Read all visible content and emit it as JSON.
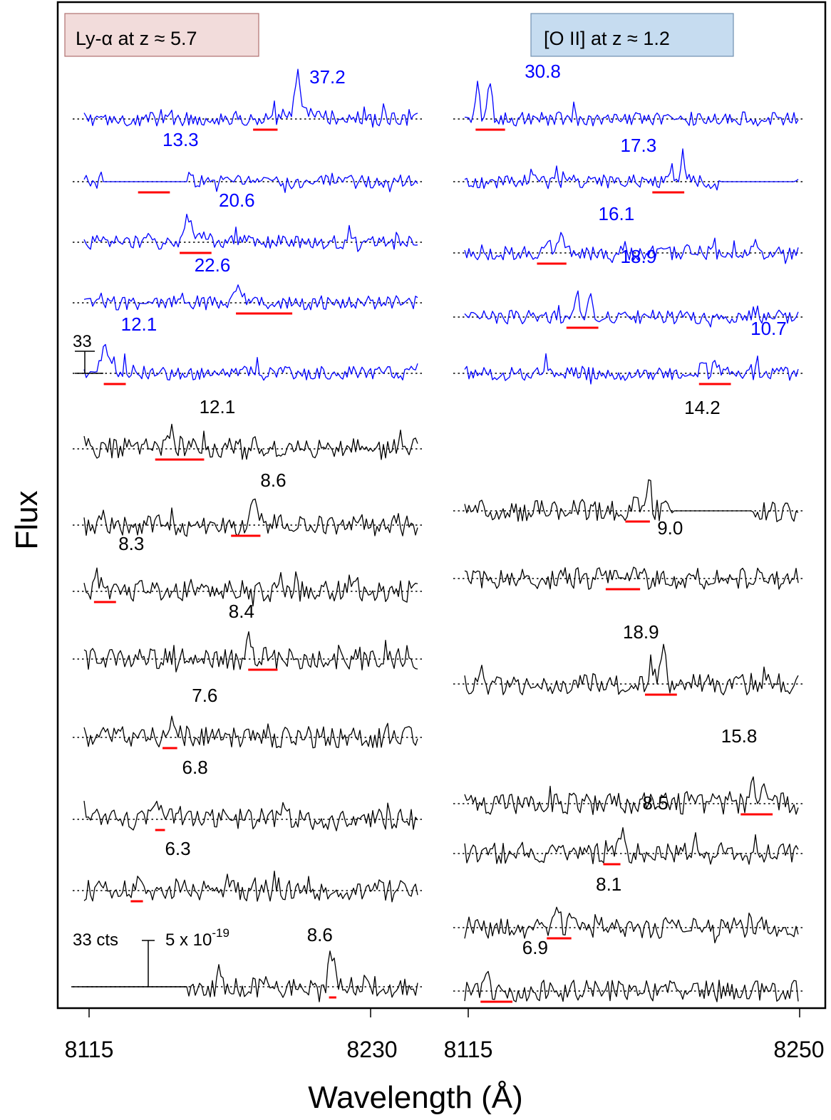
{
  "figure": {
    "ylabel": "Flux",
    "xlabel": "Wavelength (Å)",
    "colors": {
      "bright": "#0000ff",
      "faint": "#000000",
      "line_window": "#ff0000",
      "box_lya": "#f2dcdb",
      "box_oii": "#c6dcf0"
    }
  },
  "chart_data": [
    {
      "type": "line",
      "panel": "left",
      "title": "Ly-α  at  z ≈ 5.7",
      "x_ticks": [
        "8115",
        "8230"
      ],
      "xlim": [
        8115,
        8230
      ],
      "grid": false,
      "scale_bars": [
        {
          "label": "33",
          "series_index": 4
        },
        {
          "label_left": "33 cts",
          "label_right": "5 x 10",
          "exponent": "-19"
        }
      ],
      "series": [
        {
          "label": "37.2",
          "color": "blue",
          "line_center": 8200,
          "window": [
            8182,
            8192
          ],
          "label_at": 8205,
          "amp": 5.5,
          "label_dy": -14
        },
        {
          "label": "13.3",
          "color": "blue",
          "line_center": 8140,
          "window": [
            8135,
            8148
          ],
          "label_at": 8145,
          "amp": 3.0,
          "label_dy": -14
        },
        {
          "label": "20.6",
          "color": "blue",
          "line_center": 8155,
          "window": [
            8152,
            8165
          ],
          "label_at": 8168,
          "amp": 3.5,
          "label_dy": -14
        },
        {
          "label": "22.6",
          "color": "blue",
          "line_center": 8175,
          "window": [
            8175,
            8198
          ],
          "label_at": 8158,
          "amp": 2.0,
          "label_dy": -8
        },
        {
          "label": "12.1",
          "color": "blue",
          "line_center": 8121,
          "window": [
            8121,
            8130
          ],
          "label_at": 8128,
          "amp": 3.5,
          "label_dy": -24
        },
        {
          "label": "12.1",
          "color": "black",
          "line_center": 8148,
          "window": [
            8142,
            8162
          ],
          "label_at": 8160,
          "amp": 2.5,
          "label_dy": -14
        },
        {
          "label": "8.6",
          "color": "black",
          "line_center": 8182,
          "window": [
            8173,
            8185
          ],
          "label_at": 8185,
          "amp": 2.8,
          "label_dy": -18
        },
        {
          "label": "8.3",
          "color": "black",
          "line_center": 8118,
          "window": [
            8117,
            8126
          ],
          "label_at": 8127,
          "amp": 2.0,
          "label_dy": -22
        },
        {
          "label": "8.4",
          "color": "black",
          "line_center": 8180,
          "window": [
            8180,
            8192
          ],
          "label_at": 8172,
          "amp": 2.2,
          "label_dy": -22
        },
        {
          "label": "7.6",
          "color": "black",
          "line_center": 8148,
          "window": [
            8145,
            8151
          ],
          "label_at": 8157,
          "amp": 2.8,
          "label_dy": -14
        },
        {
          "label": "6.8",
          "color": "black",
          "line_center": 8144,
          "window": [
            8142,
            8146
          ],
          "label_at": 8153,
          "amp": 3.0,
          "label_dy": -28
        },
        {
          "label": "6.3",
          "color": "black",
          "line_center": 8135,
          "window": [
            8132,
            8137
          ],
          "label_at": 8146,
          "amp": 1.8,
          "label_dy": -14
        },
        {
          "label": "8.6",
          "color": "black",
          "line_center": 8214,
          "window": [
            8213,
            8216
          ],
          "label_at": 8204,
          "amp": 4.5,
          "label_dy": -28
        }
      ]
    },
    {
      "type": "line",
      "panel": "right",
      "title": "[O II]  at  z ≈ 1.2",
      "x_ticks": [
        "8115",
        "8250"
      ],
      "xlim": [
        8115,
        8250
      ],
      "grid": false,
      "series": [
        {
          "label": "30.8",
          "color": "blue",
          "line_center": 8121,
          "window": [
            8118,
            8130
          ],
          "label_at": 8138,
          "amp": 6.0,
          "label_dy": -22
        },
        {
          "label": "17.3",
          "color": "blue",
          "line_center": 8200,
          "window": [
            8190,
            8203
          ],
          "label_at": 8177,
          "amp": 3.5,
          "label_dy": -6
        },
        {
          "label": "16.1",
          "color": "blue",
          "line_center": 8150,
          "window": [
            8143,
            8155
          ],
          "label_at": 8168,
          "amp": 3.5,
          "label_dy": -10
        },
        {
          "label": "18.9",
          "color": "blue",
          "line_center": 8162,
          "window": [
            8155,
            8168
          ],
          "label_at": 8177,
          "amp": 4.0,
          "label_dy": -40
        },
        {
          "label": "10.7",
          "color": "blue",
          "line_center": 8213,
          "window": [
            8209,
            8222
          ],
          "label_at": 8230,
          "amp": 2.5,
          "label_dy": -18
        },
        {
          "label": "14.2",
          "color": "black",
          "line_center": 8186,
          "window": [
            8179,
            8189
          ],
          "label_at": 8203,
          "amp": 5.0,
          "label_dy": -100
        },
        {
          "label": "9.0",
          "color": "black",
          "line_center": 8180,
          "window": [
            8171,
            8185
          ],
          "label_at": 8192,
          "amp": 2.5,
          "label_dy": -26
        },
        {
          "label": "18.9",
          "color": "black",
          "line_center": 8192,
          "window": [
            8187,
            8200
          ],
          "label_at": 8178,
          "amp": 4.5,
          "label_dy": -28
        },
        {
          "label": "15.8",
          "color": "black",
          "line_center": 8233,
          "window": [
            8226,
            8239
          ],
          "label_at": 8218,
          "amp": 4.5,
          "label_dy": -50
        },
        {
          "label": "8.5",
          "color": "black",
          "line_center": 8175,
          "window": [
            8170,
            8177
          ],
          "label_at": 8186,
          "amp": 2.8,
          "label_dy": -26
        },
        {
          "label": "8.1",
          "color": "black",
          "line_center": 8154,
          "window": [
            8147,
            8157
          ],
          "label_at": 8167,
          "amp": 3.0,
          "label_dy": -16
        },
        {
          "label": "6.9",
          "color": "black",
          "line_center": 8125,
          "window": [
            8120,
            8133
          ],
          "label_at": 8137,
          "amp": 2.2,
          "label_dy": -16
        }
      ]
    }
  ]
}
